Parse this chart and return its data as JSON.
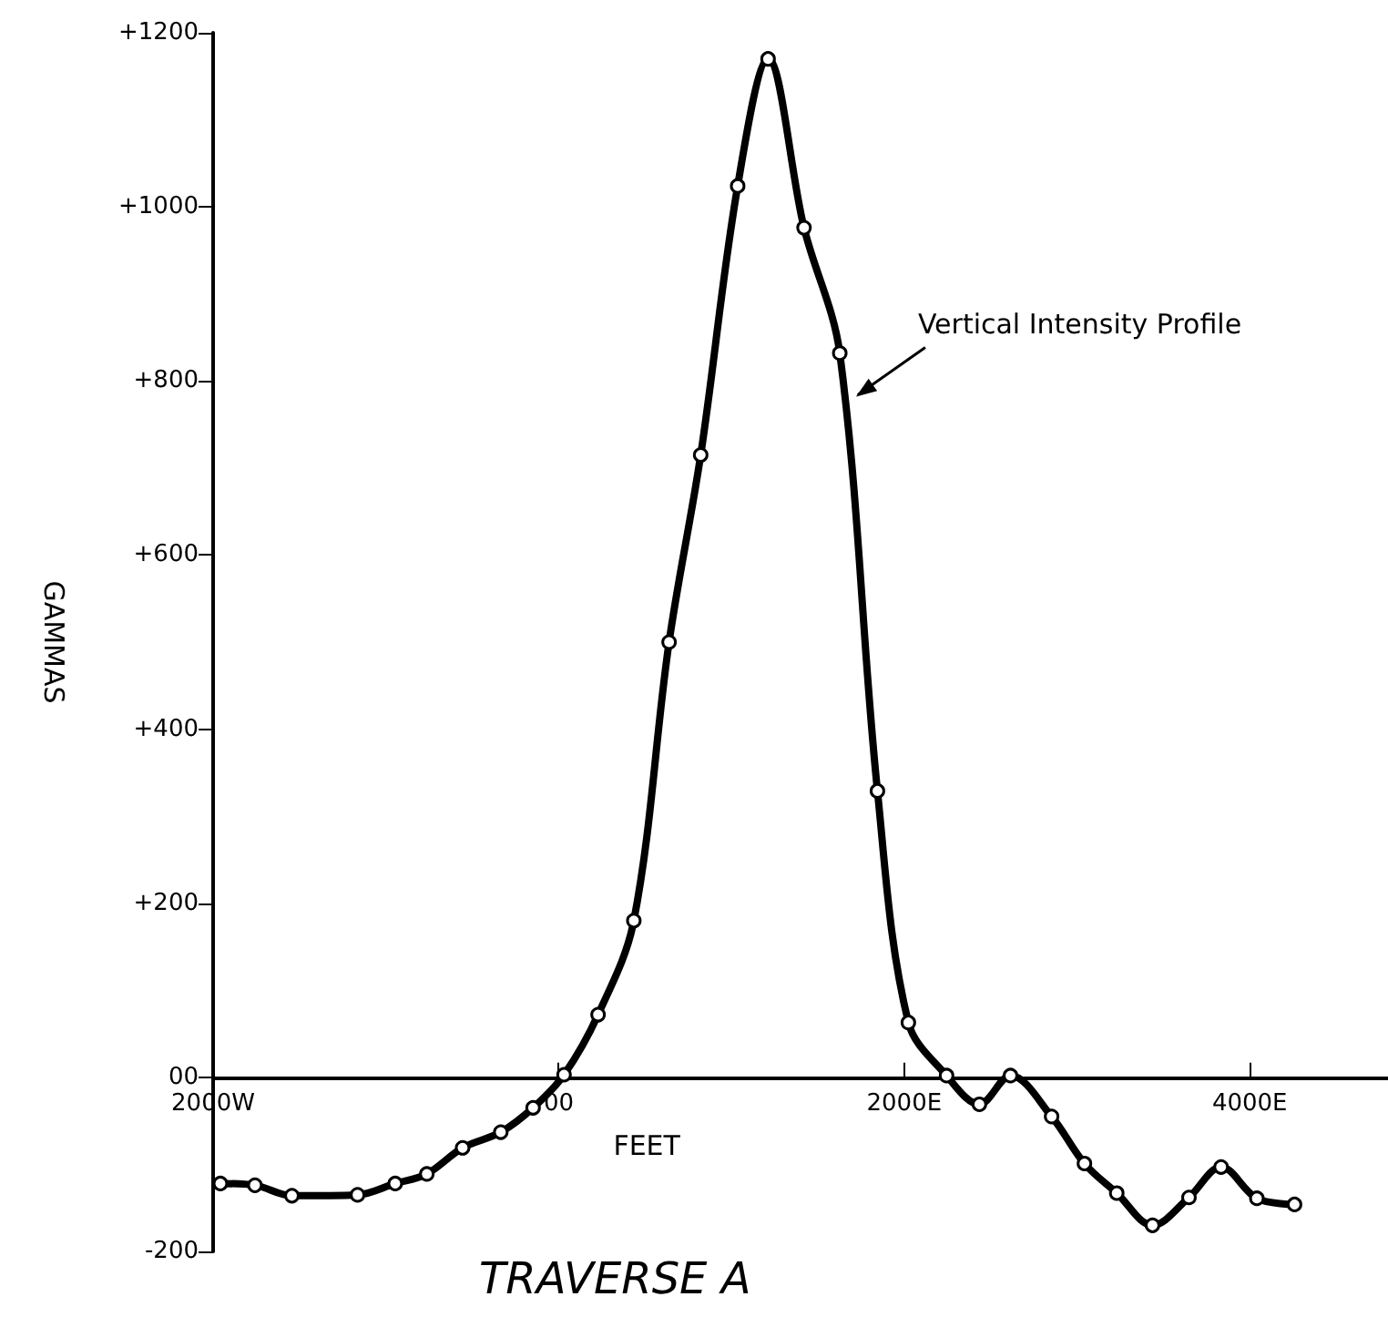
{
  "chart_data": {
    "type": "line",
    "title": "TRAVERSE A",
    "xlabel": "FEET",
    "ylabel": "GAMMAS",
    "x": [
      -1958,
      -1758,
      -1544,
      -1164,
      -946,
      -763,
      -556,
      -335,
      -148,
      31,
      228,
      435,
      639,
      822,
      1036,
      1212,
      1420,
      1627,
      1845,
      2024,
      2245,
      2435,
      2615,
      2853,
      3043,
      3230,
      3437,
      3648,
      3834,
      4041,
      4259
    ],
    "series": [
      {
        "color": "#000000",
        "values": [
          -122,
          -124,
          -136,
          -135,
          -122,
          -111,
          -81,
          -63,
          -35,
          3,
          72,
          180,
          500,
          715,
          1024,
          1170,
          976,
          832,
          329,
          63,
          2,
          -31,
          2,
          -45,
          -99,
          -133,
          -170,
          -138,
          -103,
          -139,
          -146
        ]
      }
    ],
    "xlim": [
      -2000,
      4800
    ],
    "xticks": [
      {
        "value": -2000,
        "label": "2000W"
      },
      {
        "value": 0,
        "label": "00"
      },
      {
        "value": 2000,
        "label": "2000E"
      },
      {
        "value": 4000,
        "label": "4000E"
      }
    ],
    "ylim": [
      -200,
      1200
    ],
    "yticks": [
      {
        "value": -200,
        "label": "-200"
      },
      {
        "value": 0,
        "label": "00"
      },
      {
        "value": 200,
        "label": "+200"
      },
      {
        "value": 400,
        "label": "+400"
      },
      {
        "value": 600,
        "label": "+600"
      },
      {
        "value": 800,
        "label": "+800"
      },
      {
        "value": 1000,
        "label": "+1000"
      },
      {
        "value": 1200,
        "label": "+1200"
      }
    ],
    "annotations": [
      {
        "text": "Vertical Intensity Profile",
        "x": 1700,
        "y": 780
      }
    ],
    "marker": "circle",
    "line_style": "solid"
  }
}
